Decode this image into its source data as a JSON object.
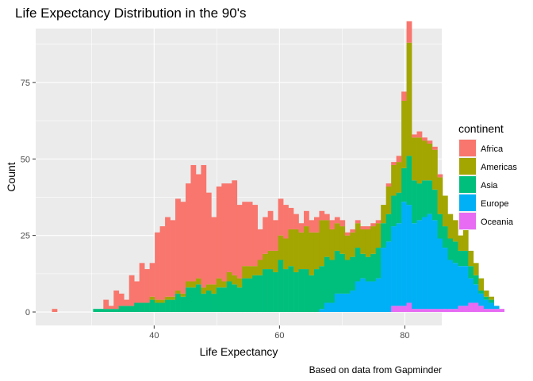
{
  "chart_data": {
    "type": "bar",
    "stacked": true,
    "title": "Life Expectancy Distribution in the 90's",
    "xlabel": "Life Expectancy",
    "ylabel": "Count",
    "caption": "Based on data from Gapminder",
    "xlim": [
      21.1,
      85.9
    ],
    "ylim": [
      -4.4,
      92.6
    ],
    "xticks": [
      40,
      60,
      80
    ],
    "yticks": [
      0,
      25,
      50,
      75
    ],
    "legend_title": "continent",
    "legend_position": "right",
    "grid": true,
    "series": [
      {
        "name": "Africa",
        "color": "#F8766D"
      },
      {
        "name": "Americas",
        "color": "#A3A500"
      },
      {
        "name": "Asia",
        "color": "#00BF7D"
      },
      {
        "name": "Europe",
        "color": "#00B0F6"
      },
      {
        "name": "Oceania",
        "color": "#E76BF3"
      }
    ],
    "bin_start": 23.7,
    "bin_width": 0.82,
    "bins": [
      [
        1,
        0,
        0,
        0,
        0
      ],
      [
        0,
        0,
        0,
        0,
        0
      ],
      [
        0,
        0,
        0,
        0,
        0
      ],
      [
        0,
        0,
        0,
        0,
        0
      ],
      [
        0,
        0,
        0,
        0,
        0
      ],
      [
        0,
        0,
        0,
        0,
        0
      ],
      [
        0,
        0,
        0,
        0,
        0
      ],
      [
        0,
        0,
        0,
        0,
        0
      ],
      [
        0,
        0,
        1,
        0,
        0
      ],
      [
        0,
        0,
        1,
        0,
        0
      ],
      [
        3,
        0,
        1,
        0,
        0
      ],
      [
        1,
        0,
        1,
        0,
        0
      ],
      [
        6,
        0,
        1,
        0,
        0
      ],
      [
        4,
        0,
        2,
        0,
        0
      ],
      [
        2,
        0,
        2,
        0,
        0
      ],
      [
        10,
        0,
        2,
        0,
        0
      ],
      [
        7,
        0,
        3,
        0,
        0
      ],
      [
        13,
        0,
        3,
        0,
        0
      ],
      [
        11,
        0,
        3,
        0,
        0
      ],
      [
        11,
        1,
        4,
        0,
        0
      ],
      [
        22,
        1,
        3,
        0,
        0
      ],
      [
        24,
        1,
        3,
        0,
        0
      ],
      [
        26,
        1,
        4,
        0,
        0
      ],
      [
        25,
        1,
        4,
        0,
        0
      ],
      [
        30,
        1,
        6,
        0,
        0
      ],
      [
        30,
        1,
        5,
        0,
        0
      ],
      [
        32,
        2,
        8,
        0,
        0
      ],
      [
        38,
        2,
        8,
        0,
        0
      ],
      [
        34,
        2,
        9,
        0,
        0
      ],
      [
        40,
        2,
        6,
        0,
        0
      ],
      [
        30,
        2,
        7,
        0,
        0
      ],
      [
        22,
        3,
        6,
        0,
        0
      ],
      [
        30,
        3,
        8,
        0,
        0
      ],
      [
        32,
        2,
        8,
        0,
        0
      ],
      [
        29,
        3,
        10,
        0,
        0
      ],
      [
        31,
        3,
        9,
        0,
        0
      ],
      [
        24,
        3,
        8,
        0,
        0
      ],
      [
        21,
        4,
        11,
        0,
        0
      ],
      [
        21,
        4,
        11,
        0,
        0
      ],
      [
        20,
        3,
        12,
        0,
        0
      ],
      [
        10,
        5,
        12,
        0,
        0
      ],
      [
        12,
        5,
        14,
        0,
        0
      ],
      [
        13,
        6,
        14,
        0,
        0
      ],
      [
        10,
        7,
        13,
        0,
        0
      ],
      [
        12,
        8,
        17,
        0,
        0
      ],
      [
        11,
        10,
        14,
        0,
        0
      ],
      [
        7,
        12,
        15,
        0,
        0
      ],
      [
        5,
        14,
        13,
        0,
        0
      ],
      [
        3,
        12,
        14,
        0,
        0
      ],
      [
        5,
        14,
        14,
        0,
        0
      ],
      [
        4,
        14,
        12,
        0,
        0
      ],
      [
        5,
        12,
        14,
        0,
        0
      ],
      [
        3,
        15,
        14,
        1,
        0
      ],
      [
        2,
        12,
        15,
        3,
        0
      ],
      [
        3,
        10,
        14,
        3,
        0
      ],
      [
        2,
        9,
        14,
        6,
        0
      ],
      [
        2,
        9,
        13,
        6,
        0
      ],
      [
        1,
        8,
        11,
        6,
        0
      ],
      [
        1,
        8,
        11,
        7,
        0
      ],
      [
        1,
        8,
        11,
        10,
        0
      ],
      [
        1,
        8,
        8,
        11,
        0
      ],
      [
        1,
        9,
        8,
        10,
        0
      ],
      [
        1,
        9,
        9,
        10,
        0
      ],
      [
        1,
        8,
        10,
        11,
        0
      ],
      [
        0,
        6,
        8,
        21,
        0
      ],
      [
        1,
        9,
        9,
        23,
        0
      ],
      [
        1,
        10,
        10,
        26,
        2
      ],
      [
        2,
        10,
        10,
        27,
        2
      ],
      [
        3,
        22,
        11,
        34,
        2
      ],
      [
        7,
        37,
        16,
        32,
        3
      ],
      [
        1,
        14,
        14,
        28,
        1
      ],
      [
        2,
        15,
        12,
        29,
        1
      ],
      [
        1,
        13,
        12,
        30,
        1
      ],
      [
        1,
        12,
        11,
        31,
        1
      ],
      [
        1,
        13,
        10,
        29,
        1
      ],
      [
        1,
        12,
        8,
        23,
        1
      ],
      [
        0,
        10,
        7,
        20,
        1
      ],
      [
        0,
        8,
        7,
        16,
        1
      ],
      [
        0,
        7,
        7,
        15,
        1
      ],
      [
        0,
        5,
        5,
        13,
        2
      ],
      [
        0,
        7,
        5,
        13,
        2
      ],
      [
        0,
        5,
        4,
        8,
        3
      ],
      [
        0,
        4,
        3,
        6,
        3
      ],
      [
        0,
        4,
        1,
        4,
        2
      ],
      [
        0,
        2,
        1,
        3,
        1
      ],
      [
        0,
        1,
        1,
        2,
        1
      ],
      [
        0,
        0,
        0,
        1,
        1
      ],
      [
        0,
        0,
        0,
        0,
        1
      ]
    ]
  }
}
